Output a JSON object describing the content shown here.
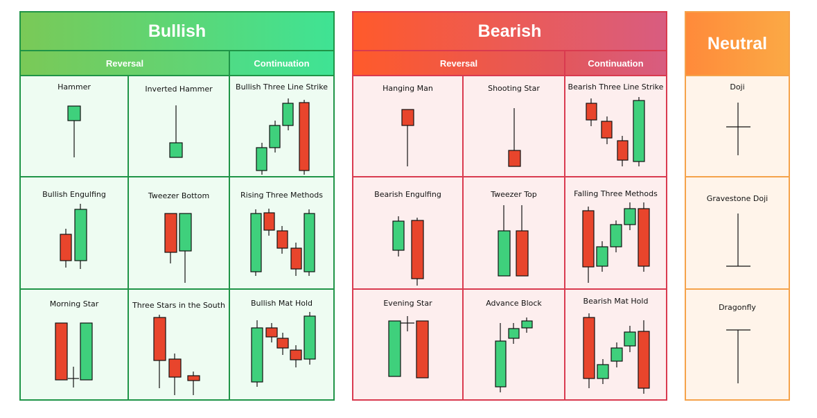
{
  "colors": {
    "bull_green": "#1f9447",
    "bull_cell_bg": "#eefcf2",
    "bear_red": "#d93a4f",
    "bear_cell_bg": "#fdeeee",
    "neutral_orange": "#f5a24a",
    "neutral_cell_bg": "#fff4ea",
    "candle_green": "#3fd07c",
    "candle_red": "#e8452c"
  },
  "bullish": {
    "title": "Bullish",
    "reversal_label": "Reversal",
    "continuation_label": "Continuation",
    "patterns": [
      "Hammer",
      "Inverted Hammer",
      "Bullish Three Line Strike",
      "Bullish Engulfing",
      "Tweezer Bottom",
      "Rising Three Methods",
      "Morning Star",
      "Three Stars in the South",
      "Bullish Mat Hold"
    ]
  },
  "bearish": {
    "title": "Bearish",
    "reversal_label": "Reversal",
    "continuation_label": "Continuation",
    "patterns": [
      "Hanging Man",
      "Shooting Star",
      "Bearish Three Line Strike",
      "Bearish Engulfing",
      "Tweezer Top",
      "Falling Three Methods",
      "Evening Star",
      "Advance Block",
      "Bearish Mat Hold"
    ]
  },
  "neutral": {
    "title": "Neutral",
    "patterns": [
      "Doji",
      "Gravestone Doji",
      "Dragonfly"
    ]
  }
}
